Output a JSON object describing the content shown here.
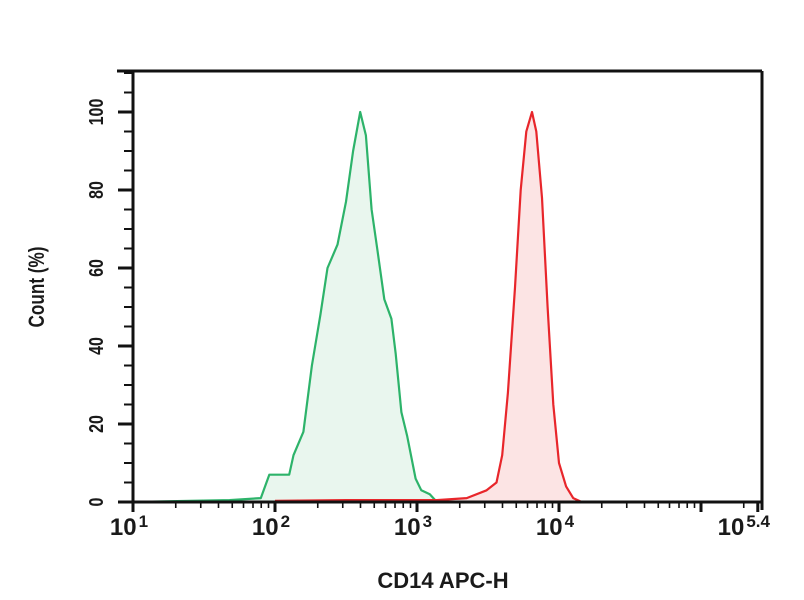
{
  "chart_data": {
    "type": "area",
    "title": "",
    "xlabel": "CD14 APC-H",
    "ylabel": "Count (%)",
    "xscale": "log10",
    "xlim_log10": [
      1,
      5.4
    ],
    "ylim": [
      0,
      110
    ],
    "grid": false,
    "legend": null,
    "x_ticks": [
      {
        "log": 1,
        "base": "10",
        "exp": "1"
      },
      {
        "log": 2,
        "base": "10",
        "exp": "2"
      },
      {
        "log": 3,
        "base": "10",
        "exp": "3"
      },
      {
        "log": 4,
        "base": "10",
        "exp": "4"
      },
      {
        "log": 5.4,
        "base": "10",
        "exp": "5.4"
      }
    ],
    "y_ticks": [
      0,
      20,
      40,
      60,
      80,
      100
    ],
    "series": [
      {
        "name": "green-histogram",
        "color": "#2db36a",
        "fill": "#e9f6ee",
        "log10_x": [
          1.0,
          1.4,
          1.68,
          1.9,
          1.96,
          2.02,
          2.1,
          2.13,
          2.2,
          2.26,
          2.32,
          2.37,
          2.44,
          2.5,
          2.55,
          2.6,
          2.64,
          2.68,
          2.72,
          2.77,
          2.82,
          2.85,
          2.89,
          2.93,
          2.99,
          3.03,
          3.09,
          3.14
        ],
        "y": [
          0,
          0.3,
          0.5,
          1,
          7,
          7,
          7,
          12,
          18,
          35,
          48,
          60,
          66,
          77,
          90,
          100,
          94,
          75,
          65,
          52,
          47,
          38,
          23,
          17,
          6,
          3,
          2,
          0
        ]
      },
      {
        "name": "red-histogram",
        "color": "#e8262b",
        "fill": "#fce4e4",
        "log10_x": [
          2.0,
          2.5,
          3.0,
          3.14,
          3.35,
          3.49,
          3.56,
          3.6,
          3.64,
          3.69,
          3.73,
          3.77,
          3.81,
          3.84,
          3.88,
          3.92,
          3.96,
          4.0,
          4.05,
          4.1,
          4.16
        ],
        "y": [
          0.3,
          0.5,
          0.5,
          0.5,
          1,
          3,
          5,
          12,
          28,
          55,
          80,
          95,
          100,
          95,
          78,
          50,
          25,
          10,
          4,
          1,
          0
        ]
      }
    ]
  }
}
